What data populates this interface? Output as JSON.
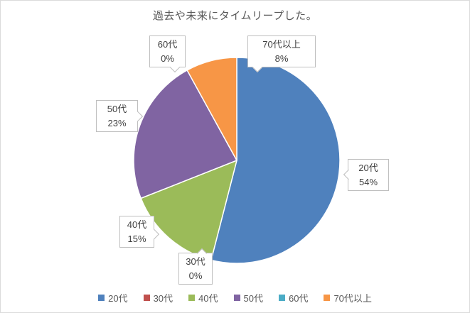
{
  "chart_data": {
    "type": "pie",
    "title": "過去や未来にタイムリープした。",
    "categories": [
      "20代",
      "30代",
      "40代",
      "50代",
      "60代",
      "70代以上"
    ],
    "values": [
      54,
      0,
      15,
      23,
      0,
      8
    ],
    "unit": "%",
    "colors": [
      "#4F81BD",
      "#C0504D",
      "#9BBB59",
      "#8064A2",
      "#4BACC6",
      "#F79646"
    ],
    "start_angle_deg": 0,
    "direction": "clockwise",
    "legend_position": "bottom",
    "data_labels": [
      {
        "label": "20代",
        "value": "54%"
      },
      {
        "label": "30代",
        "value": "0%"
      },
      {
        "label": "40代",
        "value": "15%"
      },
      {
        "label": "50代",
        "value": "23%"
      },
      {
        "label": "60代",
        "value": "0%"
      },
      {
        "label": "70代以上",
        "value": "8%"
      }
    ],
    "text_colors": {
      "title": "#595959",
      "labels": "#404040",
      "legend": "#595959"
    },
    "callout_border_color": "#BFBFBF",
    "frame_border_color": "#DBDBDB",
    "background": "#FFFFFF"
  }
}
